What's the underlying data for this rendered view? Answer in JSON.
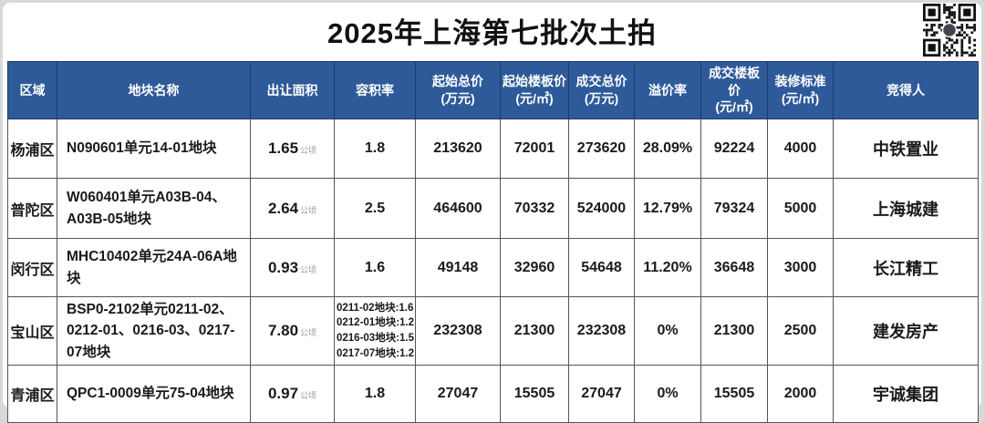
{
  "page": {
    "title": "2025年上海第七批次土拍"
  },
  "colors": {
    "header_bg": "#2e5a99",
    "header_text": "#ffffff",
    "grid_line": "#555555",
    "title_color": "#111111"
  },
  "icons": {
    "qr": "qr-code"
  },
  "table": {
    "headers": [
      {
        "label": "区域",
        "sub": ""
      },
      {
        "label": "地块名称",
        "sub": ""
      },
      {
        "label": "出让面积",
        "sub": ""
      },
      {
        "label": "容积率",
        "sub": ""
      },
      {
        "label": "起始总价",
        "sub": "(万元)"
      },
      {
        "label": "起始楼板价",
        "sub": "(元/㎡)"
      },
      {
        "label": "成交总价",
        "sub": "(万元)"
      },
      {
        "label": "溢价率",
        "sub": ""
      },
      {
        "label": "成交楼板价",
        "sub": "(元/㎡)"
      },
      {
        "label": "装修标准",
        "sub": "(元/㎡)"
      },
      {
        "label": "竞得人",
        "sub": ""
      }
    ],
    "rows": [
      {
        "region": "杨浦区",
        "plot": "N090601单元14-01地块",
        "area": "1.65",
        "area_unit": "公顷",
        "far": "1.8",
        "start_total": "213620",
        "start_floor": "72001",
        "deal_total": "273620",
        "premium": "28.09%",
        "deal_floor": "92224",
        "decoration": "4000",
        "winner": "中铁置业"
      },
      {
        "region": "普陀区",
        "plot": "W060401单元A03B-04、A03B-05地块",
        "area": "2.64",
        "area_unit": "公顷",
        "far": "2.5",
        "start_total": "464600",
        "start_floor": "70332",
        "deal_total": "524000",
        "premium": "12.79%",
        "deal_floor": "79324",
        "decoration": "5000",
        "winner": "上海城建"
      },
      {
        "region": "闵行区",
        "plot": "MHC10402单元24A-06A地块",
        "area": "0.93",
        "area_unit": "公顷",
        "far": "1.6",
        "start_total": "49148",
        "start_floor": "32960",
        "deal_total": "54648",
        "premium": "11.20%",
        "deal_floor": "36648",
        "decoration": "3000",
        "winner": "长江精工"
      },
      {
        "region": "宝山区",
        "plot": "BSP0-2102单元0211-02、0212-01、0216-03、0217-07地块",
        "area": "7.80",
        "area_unit": "公顷",
        "far_lines": [
          "0211-02地块:1.6",
          "0212-01地块:1.2",
          "0216-03地块:1.5",
          "0217-07地块:1.2"
        ],
        "start_total": "232308",
        "start_floor": "21300",
        "deal_total": "232308",
        "premium": "0%",
        "deal_floor": "21300",
        "decoration": "2500",
        "winner": "建发房产"
      },
      {
        "region": "青浦区",
        "plot": "QPC1-0009单元75-04地块",
        "area": "0.97",
        "area_unit": "公顷",
        "far": "1.8",
        "start_total": "27047",
        "start_floor": "15505",
        "deal_total": "27047",
        "premium": "0%",
        "deal_floor": "15505",
        "decoration": "2000",
        "winner": "宇诚集团"
      }
    ]
  },
  "chart_data": {
    "type": "table",
    "title": "2025年上海第七批次土拍",
    "columns": [
      "区域",
      "地块名称",
      "出让面积(公顷)",
      "容积率",
      "起始总价(万元)",
      "起始楼板价(元/㎡)",
      "成交总价(万元)",
      "溢价率",
      "成交楼板价(元/㎡)",
      "装修标准(元/㎡)",
      "竞得人"
    ],
    "rows": [
      [
        "杨浦区",
        "N090601单元14-01地块",
        1.65,
        "1.8",
        213620,
        72001,
        273620,
        "28.09%",
        92224,
        4000,
        "中铁置业"
      ],
      [
        "普陀区",
        "W060401单元A03B-04、A03B-05地块",
        2.64,
        "2.5",
        464600,
        70332,
        524000,
        "12.79%",
        79324,
        5000,
        "上海城建"
      ],
      [
        "闵行区",
        "MHC10402单元24A-06A地块",
        0.93,
        "1.6",
        49148,
        32960,
        54648,
        "11.20%",
        36648,
        3000,
        "长江精工"
      ],
      [
        "宝山区",
        "BSP0-2102单元0211-02、0212-01、0216-03、0217-07地块",
        7.8,
        "0211-02地块:1.6; 0212-01地块:1.2; 0216-03地块:1.5; 0217-07地块:1.2",
        232308,
        21300,
        232308,
        "0%",
        21300,
        2500,
        "建发房产"
      ],
      [
        "青浦区",
        "QPC1-0009单元75-04地块",
        0.97,
        "1.8",
        27047,
        15505,
        27047,
        "0%",
        15505,
        2000,
        "宇诚集团"
      ]
    ]
  }
}
